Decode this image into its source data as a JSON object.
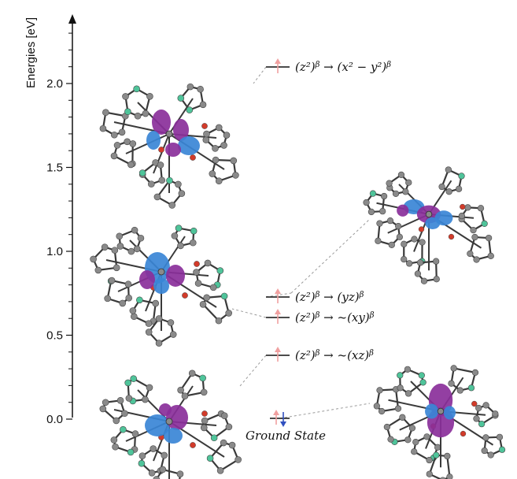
{
  "axis": {
    "title": "Energies [eV]",
    "ticks": [
      "0.0",
      "0.5",
      "1.0",
      "1.5",
      "2.0"
    ],
    "tick_values": [
      0.0,
      0.5,
      1.0,
      1.5,
      2.0
    ],
    "range": [
      0.0,
      2.4
    ]
  },
  "levels": [
    {
      "id": "xy2",
      "energy": 2.0,
      "label": "(z²)^β → (x² − y²)^β",
      "arrow": "up"
    },
    {
      "id": "yz",
      "energy": 0.75,
      "label": "(z²)^β → (yz)^β",
      "arrow": "up"
    },
    {
      "id": "xy",
      "energy": 0.63,
      "label": "(z²)^β → ~(xy)^β",
      "arrow": "up"
    },
    {
      "id": "xz",
      "energy": 0.4,
      "label": "(z²)^β → ~(xz)^β",
      "arrow": "up"
    },
    {
      "id": "ground",
      "energy": 0.0,
      "label": "Ground State",
      "arrow": "up-down"
    }
  ],
  "colors": {
    "arrow_up": "#f0a0a0",
    "arrow_down": "#3050c0",
    "lobe_blue": "#3a86d6",
    "lobe_purple": "#8a2f9a",
    "atom_gray": "#8a8a8a",
    "atom_green": "#4fc49a",
    "atom_red": "#d23b2a",
    "bond": "#3a3a3a",
    "connector": "#9a9a9a"
  }
}
